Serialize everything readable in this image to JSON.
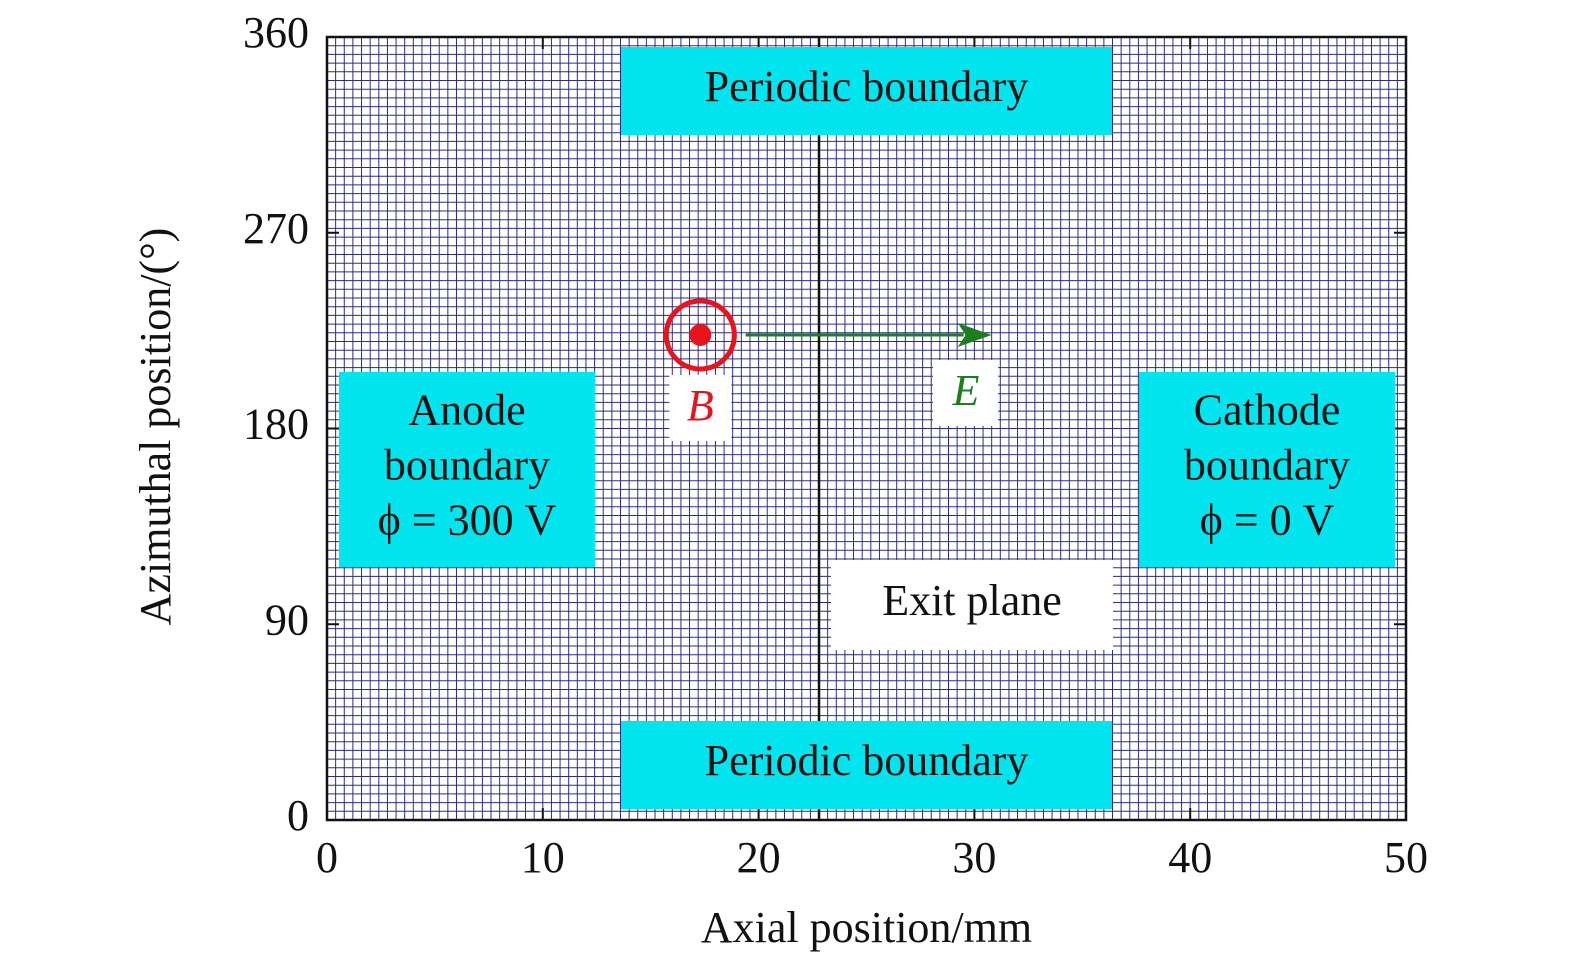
{
  "chart_data": {
    "type": "domain",
    "xlabel": "Axial position/mm",
    "ylabel": "Azimuthal position/(°)",
    "xlim": [
      0,
      50
    ],
    "ylim": [
      0,
      360
    ],
    "xticks": [
      0,
      10,
      20,
      30,
      40,
      50
    ],
    "yticks": [
      0,
      90,
      180,
      270,
      360
    ],
    "grid": true,
    "exit_plane": {
      "label": "Exit plane",
      "x": 22.8
    },
    "magnetic_field": {
      "label": "B",
      "x": 17.3,
      "y": 223,
      "color": "#e8141b"
    },
    "electric_field": {
      "label": "E",
      "x": [
        19.4,
        30.8
      ],
      "y": 223,
      "color": "#1e7d1e"
    },
    "annotations": [
      {
        "lines": [
          "Periodic boundary"
        ],
        "color": "#00e5ee"
      },
      {
        "lines": [
          "Periodic boundary"
        ],
        "color": "#00e5ee"
      },
      {
        "lines": [
          "Anode",
          "boundary",
          "ϕ = 300 V"
        ],
        "color": "#00e5ee"
      },
      {
        "lines": [
          "Cathode",
          "boundary",
          "ϕ = 0 V"
        ],
        "color": "#00e5ee"
      }
    ]
  }
}
